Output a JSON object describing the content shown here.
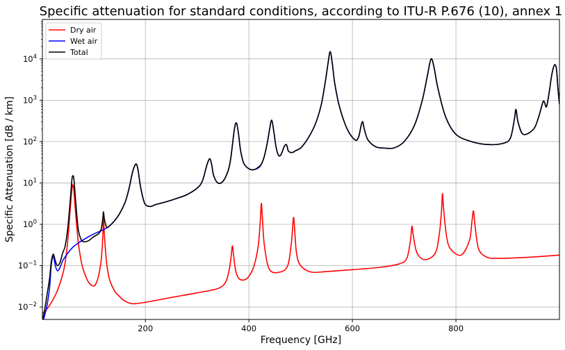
{
  "chart_data": {
    "type": "line",
    "title": "Specific attenuation for standard conditions, according to ITU-R P.676 (10), annex 1",
    "xlabel": "Frequency [GHz]",
    "ylabel": "Specific Attenuation [dB / km]",
    "xlim": [
      1,
      1000
    ],
    "ylim": [
      0.005,
      90000
    ],
    "yscale": "log",
    "grid": true,
    "legend_position": "top-left",
    "x_ticks": [
      200,
      400,
      600,
      800
    ],
    "y_ticks": [
      {
        "value": 0.01,
        "base": "10",
        "exp": "−2"
      },
      {
        "value": 0.1,
        "base": "10",
        "exp": "−1"
      },
      {
        "value": 1,
        "base": "10",
        "exp": "0"
      },
      {
        "value": 10,
        "base": "10",
        "exp": "1"
      },
      {
        "value": 100,
        "base": "10",
        "exp": "2"
      },
      {
        "value": 1000,
        "base": "10",
        "exp": "3"
      },
      {
        "value": 10000,
        "base": "10",
        "exp": "4"
      }
    ],
    "series": [
      {
        "name": "Dry air",
        "color": "#ff0000",
        "x": [
          1,
          10,
          20,
          30,
          40,
          45,
          50,
          55,
          58,
          60,
          62,
          65,
          70,
          75,
          80,
          90,
          100,
          105,
          110,
          115,
          118,
          119,
          121,
          125,
          130,
          140,
          150,
          160,
          175,
          200,
          250,
          300,
          340,
          355,
          362,
          366,
          368,
          370,
          374,
          380,
          390,
          400,
          410,
          418,
          422,
          424,
          426,
          430,
          440,
          460,
          475,
          482,
          486,
          488,
          492,
          500,
          520,
          550,
          600,
          650,
          690,
          705,
          712,
          715,
          718,
          725,
          740,
          760,
          768,
          772,
          774,
          776,
          782,
          790,
          810,
          826,
          831,
          834,
          837,
          844,
          860,
          880,
          920,
          960,
          1000
        ],
        "values": [
          0.007,
          0.009,
          0.014,
          0.025,
          0.06,
          0.12,
          0.4,
          2.5,
          7,
          9,
          6,
          2,
          0.4,
          0.15,
          0.08,
          0.04,
          0.032,
          0.038,
          0.06,
          0.15,
          0.6,
          1.4,
          0.5,
          0.12,
          0.05,
          0.025,
          0.018,
          0.014,
          0.012,
          0.013,
          0.017,
          0.022,
          0.028,
          0.04,
          0.08,
          0.18,
          0.3,
          0.2,
          0.08,
          0.05,
          0.045,
          0.055,
          0.1,
          0.3,
          1.2,
          3.2,
          1.5,
          0.3,
          0.08,
          0.07,
          0.1,
          0.35,
          1.4,
          0.9,
          0.2,
          0.1,
          0.07,
          0.072,
          0.08,
          0.09,
          0.11,
          0.15,
          0.4,
          0.9,
          0.5,
          0.2,
          0.14,
          0.2,
          0.6,
          2,
          5.5,
          2.5,
          0.5,
          0.25,
          0.18,
          0.4,
          1.2,
          2.1,
          0.9,
          0.25,
          0.16,
          0.15,
          0.155,
          0.165,
          0.18
        ]
      },
      {
        "name": "Wet air",
        "color": "#0000ff",
        "x": [
          1,
          5,
          10,
          15,
          18,
          22,
          26,
          30,
          35,
          40,
          50,
          60,
          70,
          80,
          90,
          100,
          110,
          120,
          130,
          140,
          150,
          160,
          165,
          170,
          175,
          180,
          183,
          186,
          190,
          195,
          200,
          210,
          220,
          240,
          260,
          280,
          300,
          310,
          318,
          322,
          325,
          328,
          332,
          340,
          350,
          360,
          365,
          372,
          376,
          380,
          384,
          390,
          400,
          410,
          420,
          425,
          430,
          436,
          440,
          444,
          448,
          452,
          456,
          460,
          464,
          468,
          472,
          474,
          476,
          480,
          485,
          490,
          500,
          510,
          520,
          530,
          540,
          548,
          553,
          557,
          561,
          566,
          575,
          590,
          605,
          612,
          617,
          620,
          623,
          630,
          645,
          660,
          680,
          700,
          720,
          735,
          745,
          752,
          758,
          765,
          780,
          800,
          830,
          860,
          890,
          905,
          913,
          916,
          920,
          930,
          950,
          960,
          968,
          971,
          975,
          980,
          985,
          990,
          994,
          997,
          1000
        ],
        "values": [
          0.004,
          0.006,
          0.011,
          0.03,
          0.1,
          0.17,
          0.1,
          0.075,
          0.09,
          0.13,
          0.2,
          0.28,
          0.35,
          0.42,
          0.5,
          0.58,
          0.66,
          0.75,
          0.9,
          1.2,
          1.8,
          3.2,
          5,
          9,
          18,
          27,
          28,
          20,
          9,
          4.5,
          3,
          2.7,
          3,
          3.5,
          4.2,
          5.2,
          7.5,
          11,
          25,
          35,
          38,
          28,
          15,
          10,
          11,
          20,
          40,
          200,
          280,
          150,
          60,
          30,
          22,
          21,
          24,
          30,
          45,
          100,
          200,
          330,
          180,
          80,
          50,
          45,
          55,
          75,
          85,
          75,
          60,
          55,
          55,
          60,
          70,
          100,
          160,
          300,
          800,
          3000,
          8000,
          15000,
          8000,
          2500,
          700,
          200,
          110,
          130,
          250,
          300,
          200,
          110,
          75,
          70,
          70,
          100,
          250,
          1000,
          4000,
          10000,
          6000,
          2000,
          400,
          150,
          100,
          85,
          90,
          120,
          350,
          600,
          300,
          150,
          200,
          400,
          900,
          900,
          700,
          1500,
          4000,
          7000,
          6000,
          2000,
          800
        ]
      },
      {
        "name": "Total",
        "color": "#000000",
        "x": [
          1,
          5,
          10,
          15,
          18,
          22,
          26,
          30,
          35,
          40,
          45,
          50,
          55,
          58,
          60,
          62,
          65,
          70,
          75,
          80,
          90,
          100,
          110,
          115,
          118,
          119,
          121,
          125,
          130,
          140,
          150,
          160,
          165,
          170,
          175,
          180,
          183,
          186,
          190,
          195,
          200,
          210,
          220,
          240,
          260,
          280,
          300,
          310,
          318,
          322,
          325,
          328,
          332,
          340,
          350,
          360,
          365,
          372,
          376,
          380,
          384,
          390,
          400,
          410,
          420,
          425,
          430,
          436,
          440,
          444,
          448,
          452,
          456,
          460,
          464,
          468,
          472,
          474,
          476,
          480,
          485,
          490,
          500,
          510,
          520,
          530,
          540,
          548,
          553,
          557,
          561,
          566,
          575,
          590,
          605,
          612,
          617,
          620,
          623,
          630,
          645,
          660,
          680,
          700,
          720,
          735,
          745,
          752,
          758,
          765,
          780,
          800,
          830,
          860,
          890,
          905,
          913,
          916,
          920,
          930,
          950,
          960,
          968,
          971,
          975,
          980,
          985,
          990,
          994,
          997,
          1000
        ],
        "values": [
          0.005,
          0.008,
          0.02,
          0.05,
          0.12,
          0.19,
          0.13,
          0.1,
          0.12,
          0.2,
          0.3,
          0.8,
          4,
          12,
          15,
          12,
          4,
          0.8,
          0.45,
          0.38,
          0.4,
          0.5,
          0.6,
          0.8,
          1.5,
          2,
          1.3,
          0.85,
          0.9,
          1.2,
          1.8,
          3.2,
          5,
          9,
          18,
          27,
          28,
          20,
          9,
          4.5,
          3,
          2.7,
          3,
          3.5,
          4.2,
          5.2,
          7.5,
          11,
          25,
          35,
          38,
          28,
          15,
          10,
          11,
          20,
          40,
          200,
          280,
          150,
          60,
          30,
          22,
          21,
          25,
          30,
          45,
          100,
          200,
          330,
          180,
          80,
          50,
          45,
          55,
          75,
          85,
          75,
          60,
          55,
          55,
          60,
          70,
          100,
          160,
          300,
          800,
          3000,
          8000,
          15000,
          8000,
          2500,
          700,
          200,
          110,
          130,
          250,
          300,
          200,
          110,
          75,
          70,
          70,
          100,
          250,
          1000,
          4000,
          10000,
          6000,
          2000,
          400,
          150,
          100,
          85,
          90,
          120,
          350,
          600,
          300,
          150,
          200,
          400,
          900,
          900,
          700,
          1500,
          4000,
          7000,
          6000,
          2000,
          800
        ]
      }
    ]
  }
}
